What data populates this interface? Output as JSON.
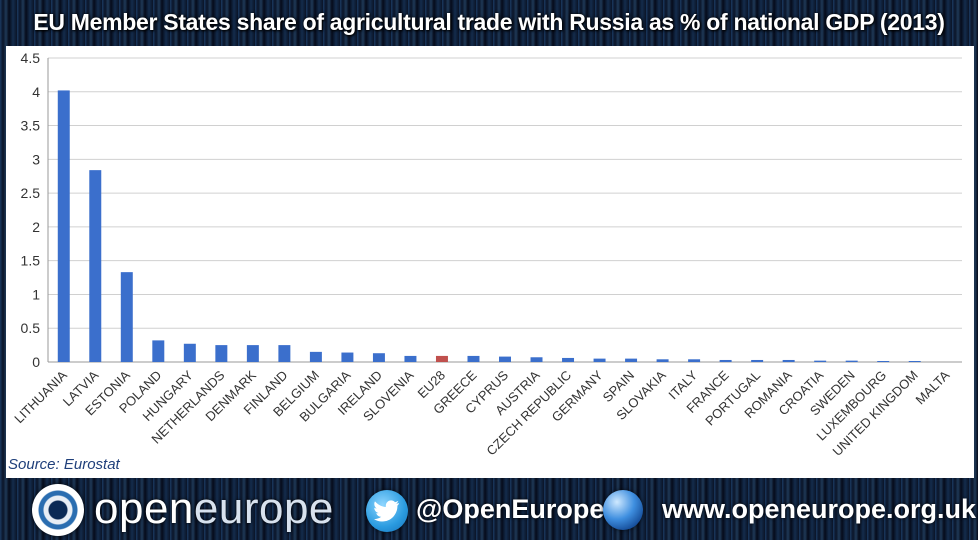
{
  "title": "EU Member States share of agricultural trade with Russia as % of national GDP (2013)",
  "source": "Source: Eurostat",
  "footer": {
    "brand_part1": "open",
    "brand_part2": "europe",
    "twitter_handle": "@OpenEurope",
    "website": "www.openeurope.org.uk"
  },
  "icons": [
    "openeurope-logo-icon",
    "twitter-bird-icon",
    "globe-icon"
  ],
  "colors": {
    "bar": "#3b6fcc",
    "highlight_bar": "#c0504d",
    "grid": "#d0d0d0",
    "axis_text": "#333333"
  },
  "chart_data": {
    "type": "bar",
    "title": "EU Member States share of agricultural trade with Russia as % of national GDP (2013)",
    "xlabel": "",
    "ylabel": "",
    "ylim": [
      0,
      4.5
    ],
    "yticks": [
      "0",
      "0.5",
      "1",
      "1.5",
      "2",
      "2.5",
      "3",
      "3.5",
      "4",
      "4.5"
    ],
    "grid": true,
    "legend": "none",
    "highlight_category": "EU28",
    "categories": [
      "LITHUANIA",
      "LATVIA",
      "ESTONIA",
      "POLAND",
      "HUNGARY",
      "NETHERLANDS",
      "DENMARK",
      "FINLAND",
      "BELGIUM",
      "BULGARIA",
      "IRELAND",
      "SLOVENIA",
      "EU28",
      "GREECE",
      "CYPRUS",
      "AUSTRIA",
      "CZECH REPUBLIC",
      "GERMANY",
      "SPAIN",
      "SLOVAKIA",
      "ITALY",
      "FRANCE",
      "PORTUGAL",
      "ROMANIA",
      "CROATIA",
      "SWEDEN",
      "LUXEMBOURG",
      "UNITED KINGDOM",
      "MALTA"
    ],
    "values": [
      4.02,
      2.84,
      1.33,
      0.32,
      0.27,
      0.25,
      0.25,
      0.25,
      0.15,
      0.14,
      0.13,
      0.09,
      0.09,
      0.09,
      0.08,
      0.07,
      0.06,
      0.05,
      0.05,
      0.04,
      0.04,
      0.03,
      0.03,
      0.03,
      0.02,
      0.02,
      0.01,
      0.01,
      0.0
    ]
  }
}
